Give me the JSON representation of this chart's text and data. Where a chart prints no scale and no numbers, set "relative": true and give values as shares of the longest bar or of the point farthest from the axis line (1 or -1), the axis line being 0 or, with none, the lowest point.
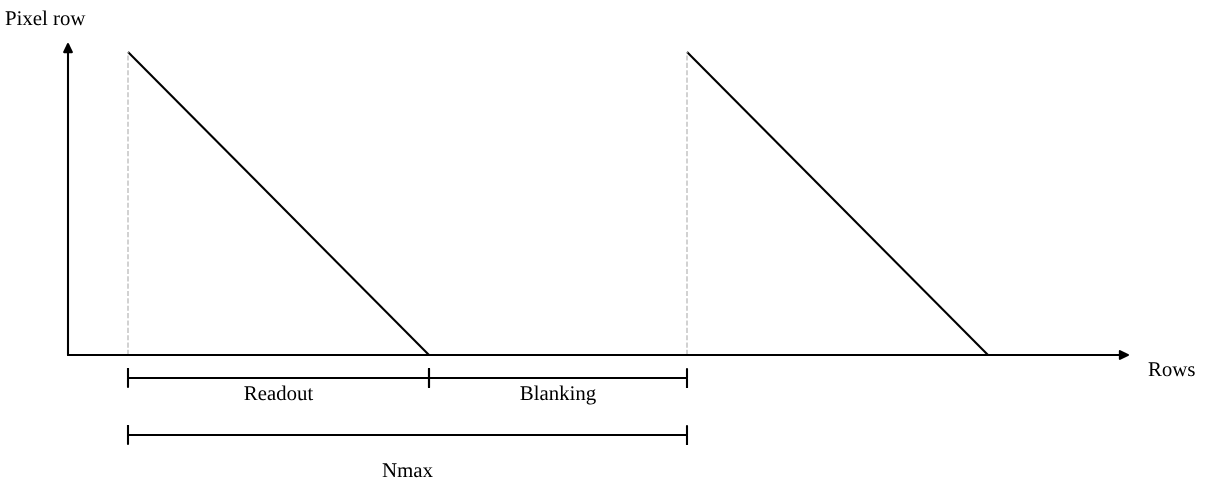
{
  "chart_data": {
    "type": "line",
    "relative": true,
    "ylabel": "Pixel row",
    "categories": [
      null,
      null,
      null,
      null,
      null,
      null,
      null,
      null,
      null,
      null,
      null,
      null,
      null,
      null,
      null,
      null,
      null,
      null,
      null,
      null,
      null
    ],
    "series": [
      {
        "color": "#000000",
        "values": [
          1,
          null,
          null,
          null,
          null,
          null,
          null,
          0,
          null,
          null,
          null,
          null,
          null,
          null,
          null,
          null,
          null,
          null,
          null,
          null,
          null
        ]
      },
      {
        "color": "#000000",
        "values": [
          null,
          null,
          null,
          null,
          null,
          null,
          null,
          null,
          null,
          null,
          null,
          null,
          null,
          1,
          null,
          null,
          null,
          null,
          null,
          null,
          0
        ]
      }
    ],
    "annotations": [
      "Readout",
      "Blanking",
      "Nmax",
      "Rows"
    ],
    "marker": "none",
    "line_style": "solid",
    "tick_labels": false
  }
}
